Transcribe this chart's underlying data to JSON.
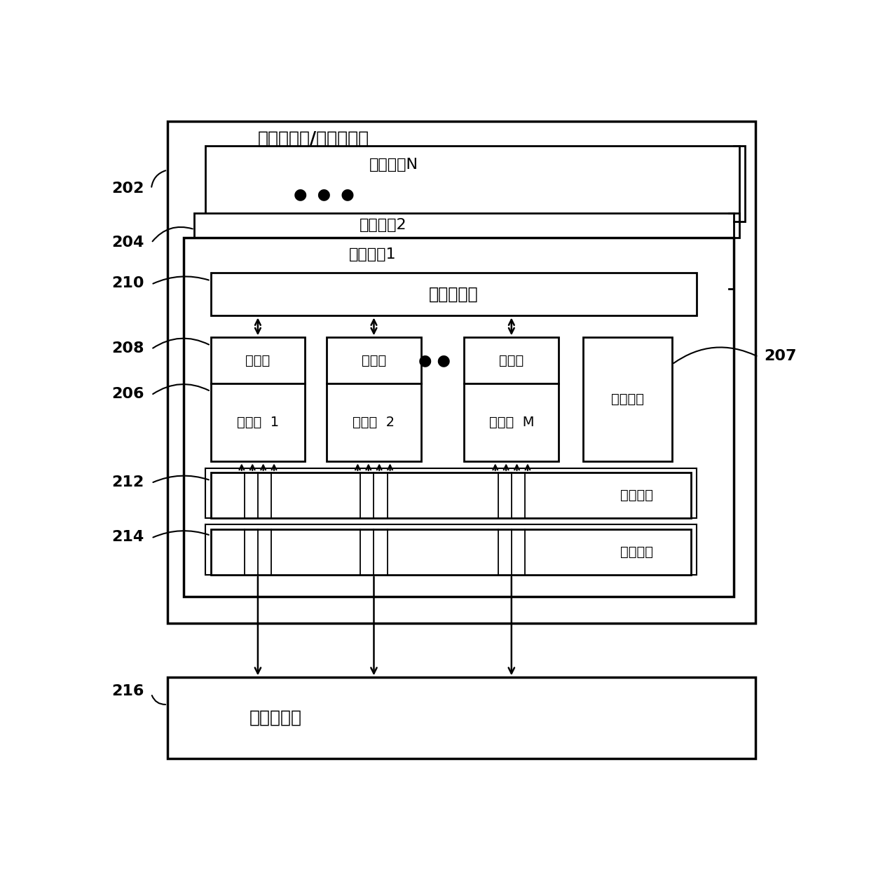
{
  "title": "图形处理器/多核处理器",
  "label_202": "202",
  "label_204": "204",
  "label_210": "210",
  "label_208": "208",
  "label_206": "206",
  "label_207": "207",
  "label_212": "212",
  "label_214": "214",
  "label_216": "216",
  "text_mpN": "多处理器N",
  "text_mp2": "多处理器2",
  "text_mp1": "多处理器1",
  "text_shared_mem": "共享存储器",
  "text_reg1": "寄存器",
  "text_reg2": "寄存器",
  "text_reg3": "寄存器",
  "text_proc1": "处理器  1",
  "text_proc2": "处理器  2",
  "text_procM": "处理器  M",
  "text_instr": "指令单元",
  "text_const": "常量缓存",
  "text_tex": "纹理缓存",
  "text_global": "全局存储器",
  "bg_color": "#ffffff",
  "dots3": "●  ●  ●",
  "dots2": "● ●"
}
